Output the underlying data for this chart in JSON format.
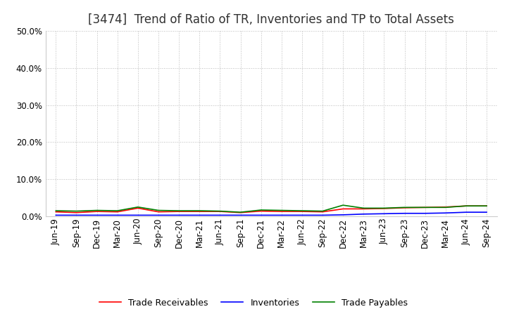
{
  "title": "[3474]  Trend of Ratio of TR, Inventories and TP to Total Assets",
  "x_labels": [
    "Jun-19",
    "Sep-19",
    "Dec-19",
    "Mar-20",
    "Jun-20",
    "Sep-20",
    "Dec-20",
    "Mar-21",
    "Jun-21",
    "Sep-21",
    "Dec-21",
    "Mar-22",
    "Jun-22",
    "Sep-22",
    "Dec-22",
    "Mar-23",
    "Jun-23",
    "Sep-23",
    "Dec-23",
    "Mar-24",
    "Jun-24",
    "Sep-24"
  ],
  "trade_receivables": [
    0.012,
    0.01,
    0.013,
    0.012,
    0.022,
    0.012,
    0.013,
    0.013,
    0.013,
    0.01,
    0.014,
    0.013,
    0.013,
    0.012,
    0.02,
    0.02,
    0.021,
    0.023,
    0.024,
    0.025,
    0.028,
    0.028
  ],
  "inventories": [
    0.003,
    0.003,
    0.003,
    0.003,
    0.003,
    0.003,
    0.003,
    0.003,
    0.003,
    0.003,
    0.003,
    0.003,
    0.003,
    0.003,
    0.004,
    0.006,
    0.007,
    0.008,
    0.008,
    0.009,
    0.011,
    0.011
  ],
  "trade_payables": [
    0.015,
    0.014,
    0.016,
    0.015,
    0.025,
    0.016,
    0.015,
    0.015,
    0.014,
    0.011,
    0.017,
    0.016,
    0.015,
    0.014,
    0.03,
    0.022,
    0.022,
    0.024,
    0.024,
    0.024,
    0.028,
    0.028
  ],
  "ylim": [
    0.0,
    0.5
  ],
  "yticks": [
    0.0,
    0.1,
    0.2,
    0.3,
    0.4,
    0.5
  ],
  "tr_color": "#FF0000",
  "inv_color": "#0000FF",
  "tp_color": "#008000",
  "bg_color": "#FFFFFF",
  "grid_color": "#BBBBBB",
  "title_fontsize": 12,
  "tick_fontsize": 8.5,
  "legend_labels": [
    "Trade Receivables",
    "Inventories",
    "Trade Payables"
  ]
}
